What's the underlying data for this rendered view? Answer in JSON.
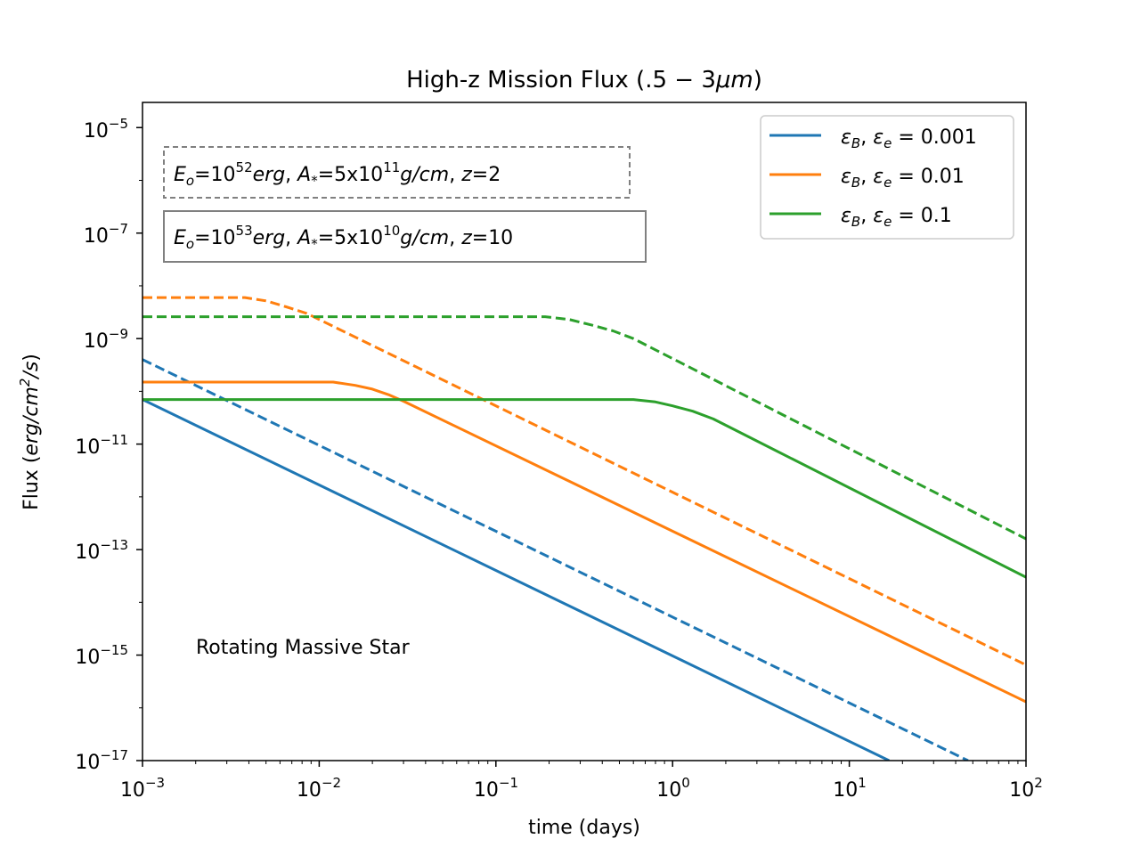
{
  "chart_data": {
    "type": "line",
    "title": "High-z Mission Flux (.5 − 3μm)",
    "xlabel": "time (days)",
    "ylabel": "Flux (erg/cm²/s)",
    "xscale": "log",
    "yscale": "log",
    "xlim": [
      0.001,
      100
    ],
    "ylim": [
      1e-17,
      3e-05
    ],
    "x_ticks": [
      {
        "base": "10",
        "exp": "−3",
        "value": 0.001
      },
      {
        "base": "10",
        "exp": "−2",
        "value": 0.01
      },
      {
        "base": "10",
        "exp": "−1",
        "value": 0.1
      },
      {
        "base": "10",
        "exp": "0",
        "value": 1
      },
      {
        "base": "10",
        "exp": "1",
        "value": 10
      },
      {
        "base": "10",
        "exp": "2",
        "value": 100
      }
    ],
    "y_ticks": [
      {
        "base": "10",
        "exp": "−17",
        "value": 1e-17
      },
      {
        "base": "10",
        "exp": "−15",
        "value": 1e-15
      },
      {
        "base": "10",
        "exp": "−13",
        "value": 1e-13
      },
      {
        "base": "10",
        "exp": "−11",
        "value": 1e-11
      },
      {
        "base": "10",
        "exp": "−9",
        "value": 1e-09
      },
      {
        "base": "10",
        "exp": "−7",
        "value": 1e-07
      },
      {
        "base": "10",
        "exp": "−5",
        "value": 1e-05
      }
    ],
    "legend": [
      {
        "label": "εB, εe = 0.001",
        "color": "#1f77b4"
      },
      {
        "label": "εB, εe = 0.01",
        "color": "#ff7f0e"
      },
      {
        "label": "εB, εe = 0.1",
        "color": "#2ca02c"
      }
    ],
    "legend_position": "top-right",
    "line_styles": {
      "solid": "E0 = 10^53 erg, A* = 5x10^10 g/cm, z = 10",
      "dashed": "E0 = 10^52 erg, A* = 5x10^11 g/cm, z = 2"
    },
    "series": [
      {
        "name": "εB, εe = 0.001",
        "style": "solid",
        "color": "#1f77b4",
        "x": [
          0.001,
          16.8
        ],
        "y": [
          7e-11,
          1e-17
        ]
      },
      {
        "name": "εB, εe = 0.001",
        "style": "dashed",
        "color": "#1f77b4",
        "x": [
          0.001,
          47
        ],
        "y": [
          4e-10,
          1e-17
        ]
      },
      {
        "name": "εB, εe = 0.01",
        "style": "solid",
        "color": "#ff7f0e",
        "x": [
          0.001,
          0.012,
          0.016,
          0.02,
          0.025,
          0.03,
          100
        ],
        "y": [
          1.5e-10,
          1.5e-10,
          1.3e-10,
          1.1e-10,
          8.5e-11,
          6.5e-11,
          1.3e-16
        ]
      },
      {
        "name": "εB, εe = 0.01",
        "style": "dashed",
        "color": "#ff7f0e",
        "x": [
          0.001,
          0.0038,
          0.005,
          0.0065,
          0.0085,
          100
        ],
        "y": [
          6e-09,
          6e-09,
          5.2e-09,
          4e-09,
          3e-09,
          6.5e-16
        ]
      },
      {
        "name": "εB, εe = 0.1",
        "style": "solid",
        "color": "#2ca02c",
        "x": [
          0.001,
          0.6,
          0.8,
          1.0,
          1.3,
          1.7,
          100
        ],
        "y": [
          7e-11,
          7e-11,
          6.3e-11,
          5.3e-11,
          4.2e-11,
          3e-11,
          3e-14
        ]
      },
      {
        "name": "εB, εe = 0.1",
        "style": "dashed",
        "color": "#2ca02c",
        "x": [
          0.001,
          0.19,
          0.26,
          0.35,
          0.46,
          0.6,
          100
        ],
        "y": [
          2.6e-09,
          2.6e-09,
          2.3e-09,
          1.8e-09,
          1.4e-09,
          1e-09,
          1.6e-13
        ]
      }
    ],
    "annotations": {
      "box_dashed": {
        "e_sym": "E",
        "e_sub": "o",
        "eq1": "=",
        "base1": "10",
        "exp1": "52",
        "unit1": "erg",
        "sep1": ", ",
        "a_sym": "A",
        "a_sub": "*",
        "eq2": "=",
        "mant": "5x10",
        "exp2": "11",
        "unit2": "g/cm",
        "sep2": ", ",
        "z_sym": "z",
        "eq3": "=",
        "z_val": "2"
      },
      "box_solid": {
        "e_sym": "E",
        "e_sub": "o",
        "eq1": "=",
        "base1": "10",
        "exp1": "53",
        "unit1": "erg",
        "sep1": ", ",
        "a_sym": "A",
        "a_sub": "*",
        "eq2": "=",
        "mant": "5x10",
        "exp2": "10",
        "unit2": "g/cm",
        "sep2": ", ",
        "z_sym": "z",
        "eq3": "=",
        "z_val": "10"
      },
      "label": "Rotating Massive Star"
    }
  },
  "text": {
    "title_main": "High-z Mission Flux (",
    "title_num": ".5",
    "title_minus": " − ",
    "title_three": "3",
    "title_unit": "μm",
    "title_close": ")",
    "xlabel": "time (days)",
    "ylabel_main": "Flux (",
    "ylabel_unit": "erg/cm",
    "ylabel_sup": "2",
    "ylabel_rest": "/s",
    "ylabel_close": ")",
    "legend": [
      {
        "eps": "ε",
        "sub_b": "B",
        "comma": ", ",
        "eps2": "ε",
        "sub_e": "e",
        "eq": " = ",
        "val": "0.001"
      },
      {
        "eps": "ε",
        "sub_b": "B",
        "comma": ", ",
        "eps2": "ε",
        "sub_e": "e",
        "eq": " = ",
        "val": "0.01"
      },
      {
        "eps": "ε",
        "sub_b": "B",
        "comma": ", ",
        "eps2": "ε",
        "sub_e": "e",
        "eq": " = ",
        "val": "0.1"
      }
    ]
  }
}
